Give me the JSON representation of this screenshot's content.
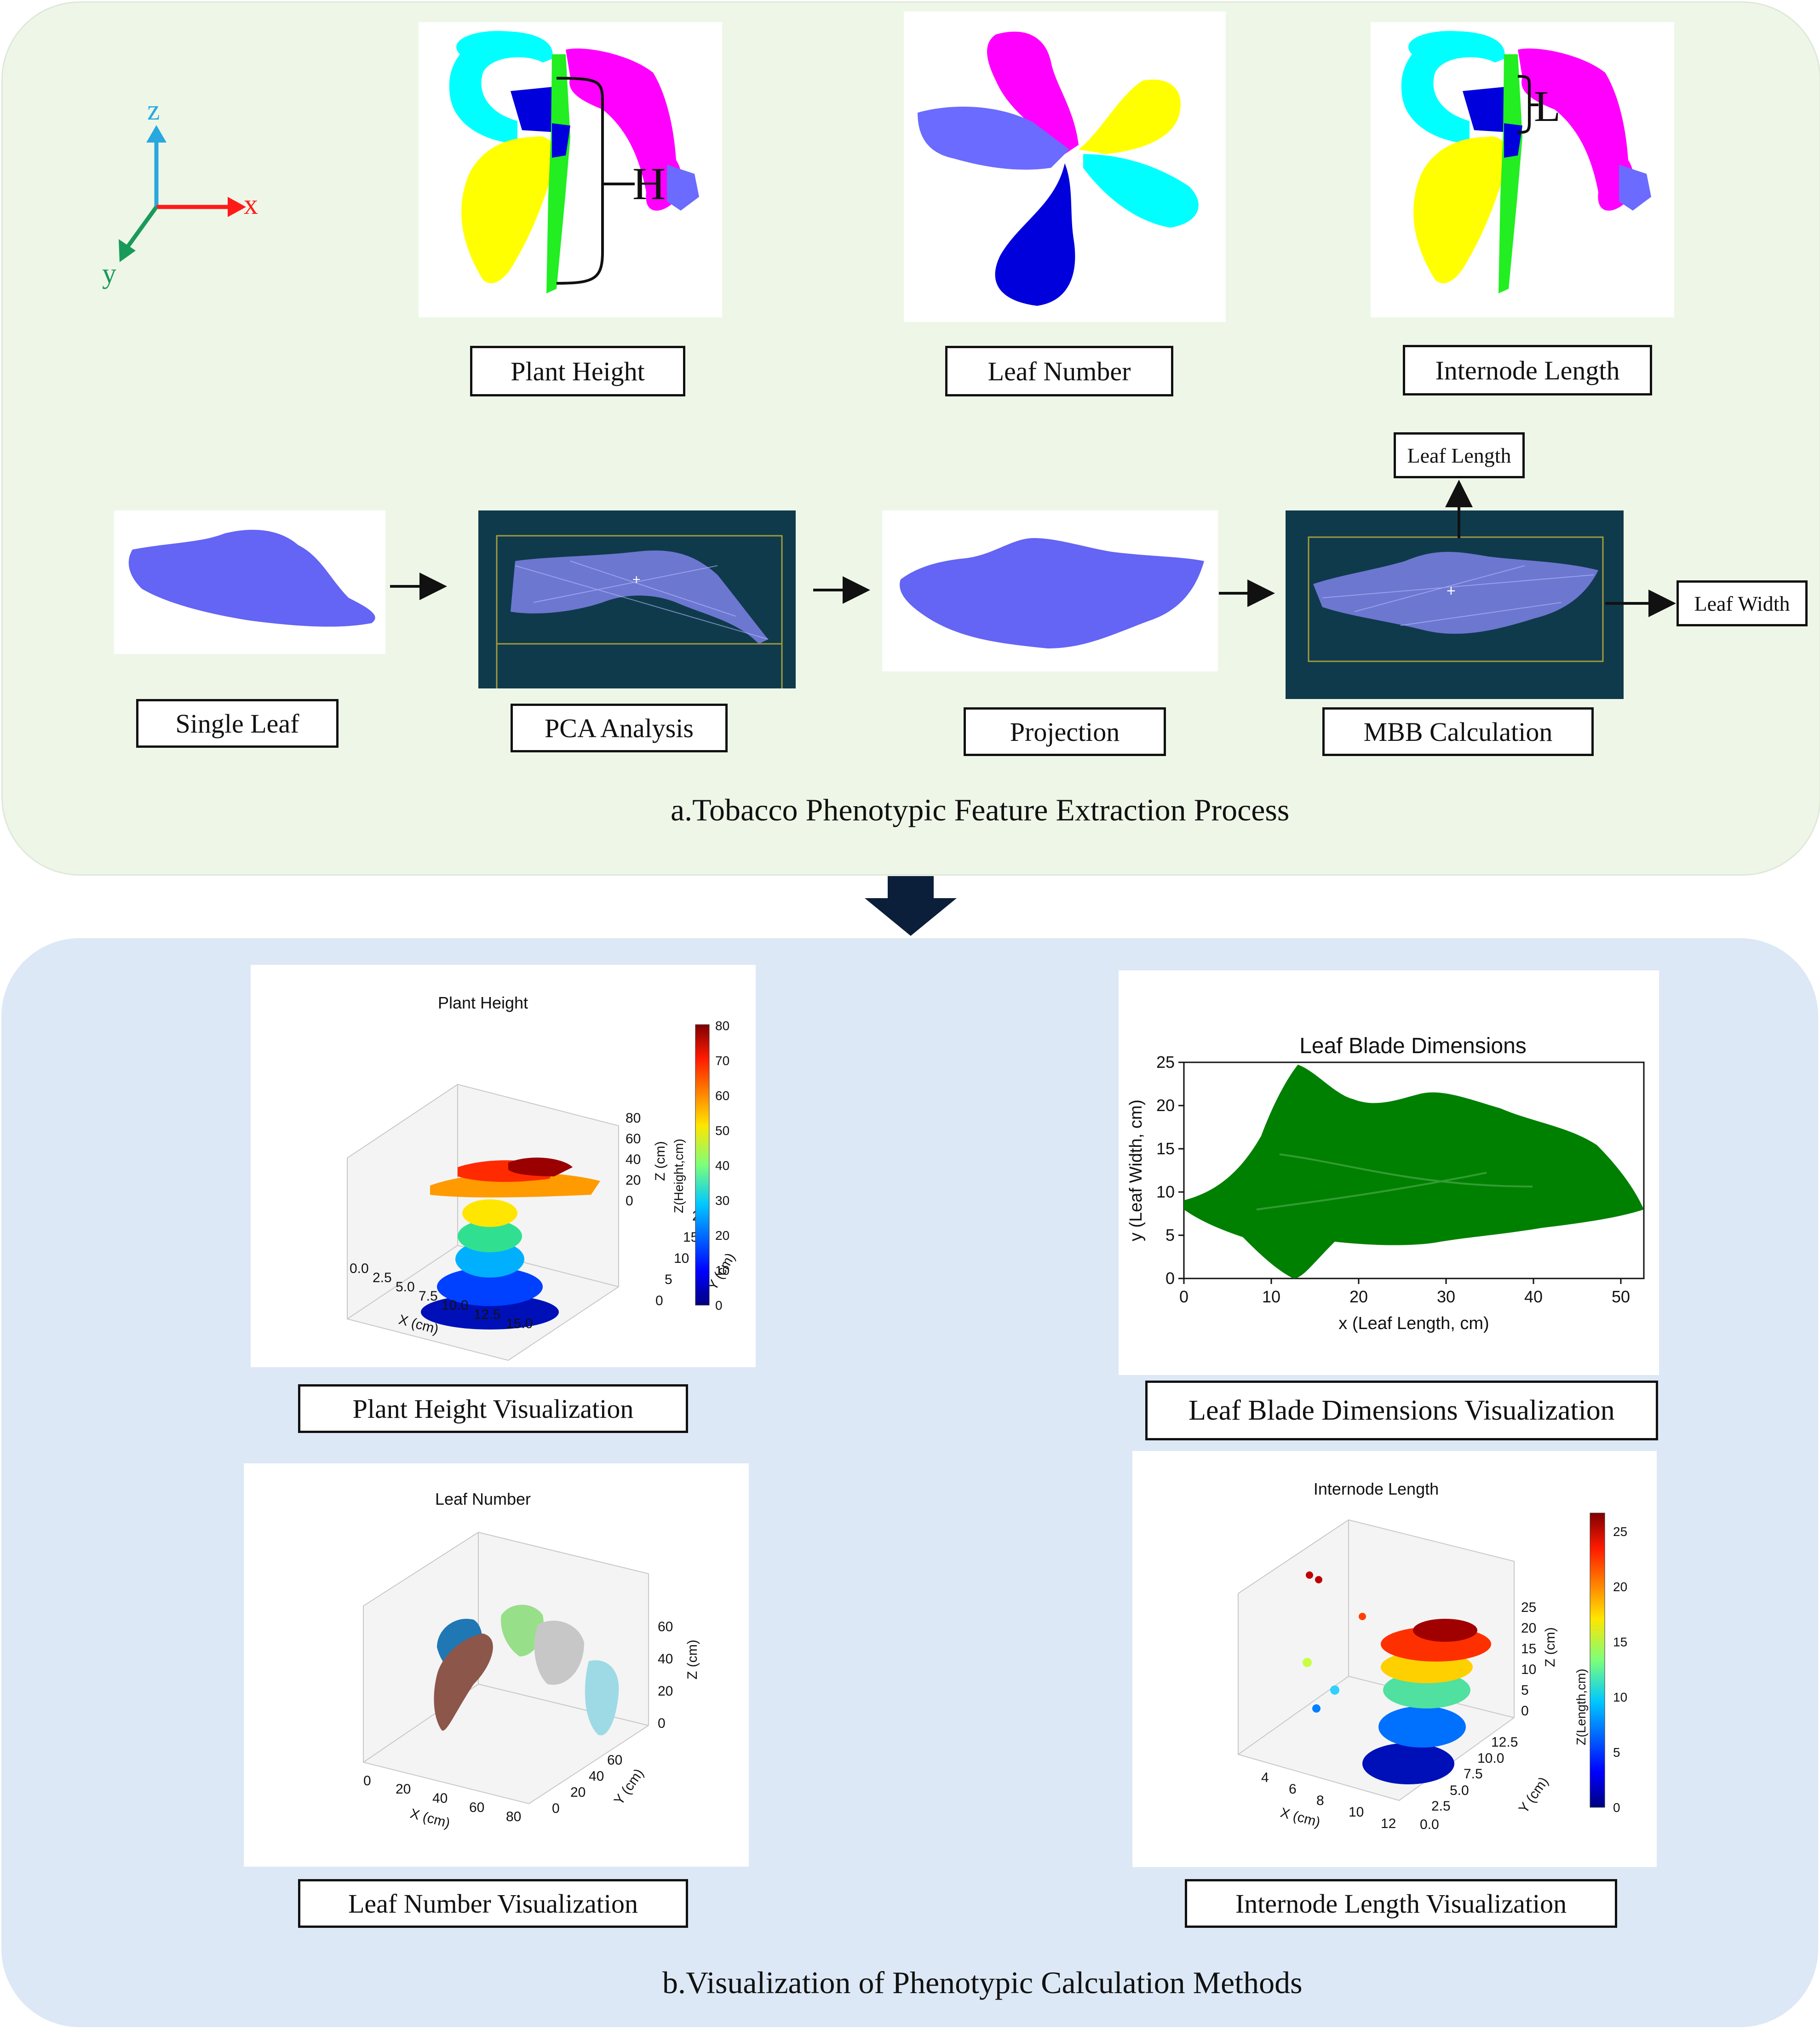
{
  "panel_a": {
    "caption": "a.Tobacco Phenotypic Feature Extraction Process",
    "axes": {
      "z": "z",
      "x": "x",
      "y": "y"
    },
    "top_labels": {
      "plant_height": "Plant Height",
      "leaf_number": "Leaf Number",
      "internode_length": "Internode Length"
    },
    "markers": {
      "h": "H",
      "l": "L"
    },
    "steps": {
      "single_leaf": "Single Leaf",
      "pca": "PCA Analysis",
      "projection": "Projection",
      "mbb": "MBB Calculation"
    },
    "outputs": {
      "leaf_length": "Leaf Length",
      "leaf_width": "Leaf Width"
    },
    "colors": {
      "cyan": "#00ffff",
      "blue": "#0000dd",
      "green": "#22ee22",
      "magenta": "#ff00ff",
      "yellow": "#ffff00",
      "periwinkle": "#6b6bff",
      "leaf": "#6464f5"
    }
  },
  "panel_b": {
    "caption": "b.Visualization of Phenotypic Calculation Methods",
    "labels": {
      "plant_height": "Plant Height Visualization",
      "leaf_blade": "Leaf Blade Dimensions Visualization",
      "leaf_number": "Leaf Number Visualization",
      "internode": "Internode Length Visualization"
    },
    "plant_height_plot": {
      "title": "Plant Height",
      "x_label": "X (cm)",
      "y_label": "Y (cm)",
      "z_label": "Z (cm)",
      "x_ticks": [
        "0.0",
        "2.5",
        "5.0",
        "7.5",
        "10.0",
        "12.5",
        "15.0"
      ],
      "y_ticks": [
        "0",
        "5",
        "10",
        "15",
        "20"
      ],
      "z_ticks": [
        "0",
        "20",
        "40",
        "60",
        "80"
      ],
      "colorbar_label": "Z(Height,cm)",
      "colorbar_ticks": [
        "0",
        "10",
        "20",
        "30",
        "40",
        "50",
        "60",
        "70",
        "80"
      ]
    },
    "leaf_blade_plot": {
      "title": "Leaf Blade Dimensions",
      "x_label": "x (Leaf Length, cm)",
      "y_label": "y (Leaf Width, cm)",
      "x_ticks": [
        "0",
        "10",
        "20",
        "30",
        "40",
        "50"
      ],
      "y_ticks": [
        "0",
        "5",
        "10",
        "15",
        "20",
        "25"
      ],
      "point_color": "#008000"
    },
    "leaf_number_plot": {
      "title": "Leaf Number",
      "x_label": "X (cm)",
      "y_label": "Y (cm)",
      "z_label": "Z (cm)",
      "x_ticks": [
        "0",
        "20",
        "40",
        "60",
        "80"
      ],
      "y_ticks": [
        "0",
        "20",
        "40",
        "60"
      ],
      "z_ticks": [
        "0",
        "20",
        "40",
        "60"
      ]
    },
    "internode_plot": {
      "title": "Internode Length",
      "x_label": "X (cm)",
      "y_label": "Y (cm)",
      "z_label": "Z (cm)",
      "x_ticks": [
        "4",
        "6",
        "8",
        "10",
        "12"
      ],
      "y_ticks": [
        "0.0",
        "2.5",
        "5.0",
        "7.5",
        "10.0",
        "12.5"
      ],
      "z_ticks": [
        "0",
        "5",
        "10",
        "15",
        "20",
        "25"
      ],
      "colorbar_label": "Z(Length,cm)",
      "colorbar_ticks": [
        "0",
        "5",
        "10",
        "15",
        "20",
        "25"
      ]
    }
  }
}
